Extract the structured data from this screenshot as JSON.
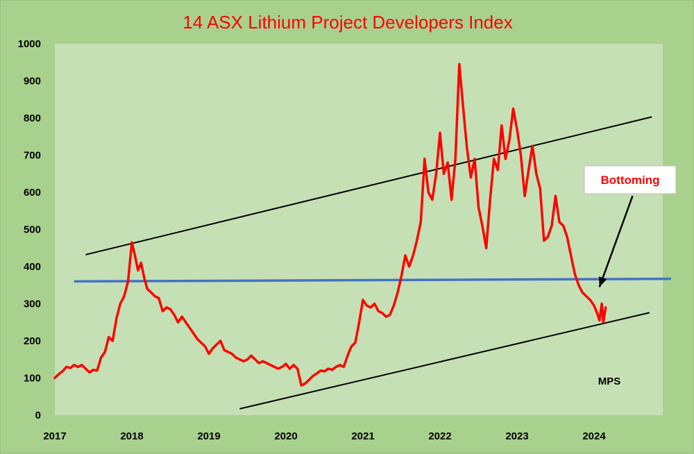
{
  "chart_data": {
    "type": "line",
    "title": "14 ASX Lithium Project Developers Index",
    "xlabel": "",
    "ylabel": "",
    "xlim": [
      2017,
      2025.0
    ],
    "ylim": [
      0,
      1000
    ],
    "x_ticks": [
      "2017",
      "2018",
      "2019",
      "2020",
      "2021",
      "2022",
      "2023",
      "2024"
    ],
    "y_ticks": [
      "0",
      "100",
      "200",
      "300",
      "400",
      "500",
      "600",
      "700",
      "800",
      "900",
      "1000"
    ],
    "grid": false,
    "colors": {
      "plot_bg": "#c5e0b4",
      "outer_bg": "#a9d18e",
      "index_line": "#ff0000",
      "level_line": "#4472c4",
      "trend_line": "#000000"
    },
    "series": [
      {
        "values": [
          [
            2017.0,
            100
          ],
          [
            2017.05,
            110
          ],
          [
            2017.1,
            118
          ],
          [
            2017.15,
            130
          ],
          [
            2017.2,
            127
          ],
          [
            2017.25,
            135
          ],
          [
            2017.3,
            130
          ],
          [
            2017.35,
            135
          ],
          [
            2017.4,
            125
          ],
          [
            2017.45,
            115
          ],
          [
            2017.5,
            122
          ],
          [
            2017.55,
            120
          ],
          [
            2017.6,
            155
          ],
          [
            2017.65,
            170
          ],
          [
            2017.7,
            210
          ],
          [
            2017.75,
            200
          ],
          [
            2017.8,
            260
          ],
          [
            2017.85,
            300
          ],
          [
            2017.9,
            320
          ],
          [
            2017.95,
            360
          ],
          [
            2018.0,
            465
          ],
          [
            2018.04,
            430
          ],
          [
            2018.08,
            390
          ],
          [
            2018.12,
            410
          ],
          [
            2018.16,
            370
          ],
          [
            2018.2,
            340
          ],
          [
            2018.25,
            330
          ],
          [
            2018.3,
            320
          ],
          [
            2018.35,
            315
          ],
          [
            2018.4,
            280
          ],
          [
            2018.45,
            290
          ],
          [
            2018.5,
            285
          ],
          [
            2018.55,
            270
          ],
          [
            2018.6,
            250
          ],
          [
            2018.65,
            265
          ],
          [
            2018.7,
            250
          ],
          [
            2018.75,
            235
          ],
          [
            2018.8,
            220
          ],
          [
            2018.85,
            205
          ],
          [
            2018.9,
            195
          ],
          [
            2018.95,
            185
          ],
          [
            2019.0,
            165
          ],
          [
            2019.05,
            180
          ],
          [
            2019.1,
            190
          ],
          [
            2019.15,
            200
          ],
          [
            2019.2,
            175
          ],
          [
            2019.25,
            170
          ],
          [
            2019.3,
            165
          ],
          [
            2019.35,
            155
          ],
          [
            2019.4,
            150
          ],
          [
            2019.45,
            145
          ],
          [
            2019.5,
            150
          ],
          [
            2019.55,
            160
          ],
          [
            2019.6,
            150
          ],
          [
            2019.65,
            140
          ],
          [
            2019.7,
            145
          ],
          [
            2019.75,
            140
          ],
          [
            2019.8,
            135
          ],
          [
            2019.85,
            130
          ],
          [
            2019.9,
            125
          ],
          [
            2019.95,
            130
          ],
          [
            2020.0,
            138
          ],
          [
            2020.05,
            125
          ],
          [
            2020.1,
            135
          ],
          [
            2020.15,
            125
          ],
          [
            2020.2,
            80
          ],
          [
            2020.25,
            85
          ],
          [
            2020.3,
            95
          ],
          [
            2020.35,
            105
          ],
          [
            2020.4,
            112
          ],
          [
            2020.45,
            120
          ],
          [
            2020.5,
            118
          ],
          [
            2020.55,
            125
          ],
          [
            2020.6,
            122
          ],
          [
            2020.65,
            130
          ],
          [
            2020.7,
            135
          ],
          [
            2020.75,
            130
          ],
          [
            2020.8,
            160
          ],
          [
            2020.85,
            185
          ],
          [
            2020.9,
            195
          ],
          [
            2020.95,
            250
          ],
          [
            2021.0,
            310
          ],
          [
            2021.05,
            295
          ],
          [
            2021.1,
            290
          ],
          [
            2021.15,
            300
          ],
          [
            2021.2,
            280
          ],
          [
            2021.25,
            275
          ],
          [
            2021.3,
            265
          ],
          [
            2021.35,
            270
          ],
          [
            2021.4,
            295
          ],
          [
            2021.45,
            330
          ],
          [
            2021.5,
            375
          ],
          [
            2021.55,
            430
          ],
          [
            2021.6,
            400
          ],
          [
            2021.65,
            430
          ],
          [
            2021.7,
            470
          ],
          [
            2021.75,
            520
          ],
          [
            2021.8,
            690
          ],
          [
            2021.85,
            600
          ],
          [
            2021.9,
            580
          ],
          [
            2021.95,
            650
          ],
          [
            2022.0,
            760
          ],
          [
            2022.05,
            650
          ],
          [
            2022.1,
            680
          ],
          [
            2022.15,
            580
          ],
          [
            2022.2,
            690
          ],
          [
            2022.25,
            945
          ],
          [
            2022.3,
            830
          ],
          [
            2022.35,
            720
          ],
          [
            2022.4,
            640
          ],
          [
            2022.45,
            690
          ],
          [
            2022.5,
            560
          ],
          [
            2022.55,
            510
          ],
          [
            2022.6,
            450
          ],
          [
            2022.65,
            580
          ],
          [
            2022.7,
            690
          ],
          [
            2022.75,
            660
          ],
          [
            2022.8,
            780
          ],
          [
            2022.85,
            690
          ],
          [
            2022.9,
            740
          ],
          [
            2022.95,
            825
          ],
          [
            2023.0,
            770
          ],
          [
            2023.05,
            700
          ],
          [
            2023.1,
            590
          ],
          [
            2023.15,
            660
          ],
          [
            2023.2,
            725
          ],
          [
            2023.25,
            650
          ],
          [
            2023.3,
            610
          ],
          [
            2023.35,
            470
          ],
          [
            2023.4,
            480
          ],
          [
            2023.45,
            510
          ],
          [
            2023.5,
            590
          ],
          [
            2023.55,
            520
          ],
          [
            2023.6,
            510
          ],
          [
            2023.65,
            480
          ],
          [
            2023.7,
            430
          ],
          [
            2023.75,
            380
          ],
          [
            2023.8,
            350
          ],
          [
            2023.85,
            330
          ],
          [
            2023.9,
            320
          ],
          [
            2023.95,
            310
          ],
          [
            2024.0,
            295
          ],
          [
            2024.04,
            275
          ],
          [
            2024.07,
            255
          ],
          [
            2024.1,
            300
          ],
          [
            2024.12,
            250
          ],
          [
            2024.15,
            290
          ]
        ]
      }
    ],
    "reference_lines": [
      {
        "kind": "horizontal",
        "from": [
          2017.25,
          360
        ],
        "to": [
          2025.0,
          367
        ]
      },
      {
        "kind": "upper-trend",
        "from": [
          2017.4,
          432
        ],
        "to": [
          2024.75,
          803
        ]
      },
      {
        "kind": "lower-trend",
        "from": [
          2019.4,
          17
        ],
        "to": [
          2024.72,
          276
        ]
      }
    ],
    "annotations": {
      "callout": "Bottoming",
      "callout_arrow": {
        "from": [
          2024.5,
          590
        ],
        "to": [
          2024.07,
          345
        ]
      },
      "watermark": "MPS"
    }
  }
}
